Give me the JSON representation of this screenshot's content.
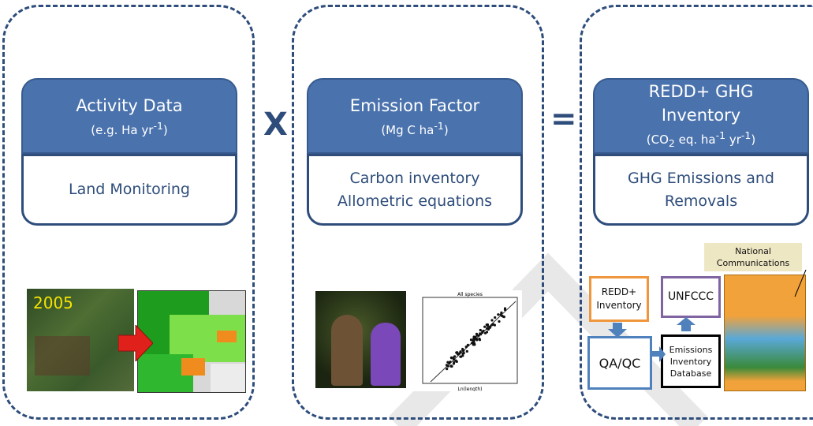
{
  "activity": {
    "title": "Activity Data",
    "subtitle": "(e.g. Ha yr-1)",
    "body": "Land Monitoring",
    "map_year": "2005"
  },
  "operator1": "X",
  "emission": {
    "title": "Emission Factor",
    "subtitle": "(Mg C ha-1)",
    "body_line1": "Carbon inventory",
    "body_line2": "Allometric equations",
    "plot_title": "All species",
    "plot_xlabel": "Ln(length)"
  },
  "operator2": "=",
  "redd": {
    "title_line1": "REDD+ GHG",
    "title_line2": "Inventory",
    "subtitle": "(CO2 eq. ha-1 yr-1)",
    "body_line1": "GHG Emissions and",
    "body_line2": "Removals"
  },
  "flow": {
    "redd_inventory": "REDD+ Inventory",
    "unfccc": "UNFCCC",
    "qaqc": "QA/QC",
    "database": "Emissions Inventory Database",
    "national_comms": "National Communications"
  },
  "colors": {
    "panel_border": "#2e4d7b",
    "header_fill": "#4a72ad",
    "orange_box": "#f0963c",
    "purple_box": "#8064a2",
    "blue_box": "#4f81bd"
  }
}
